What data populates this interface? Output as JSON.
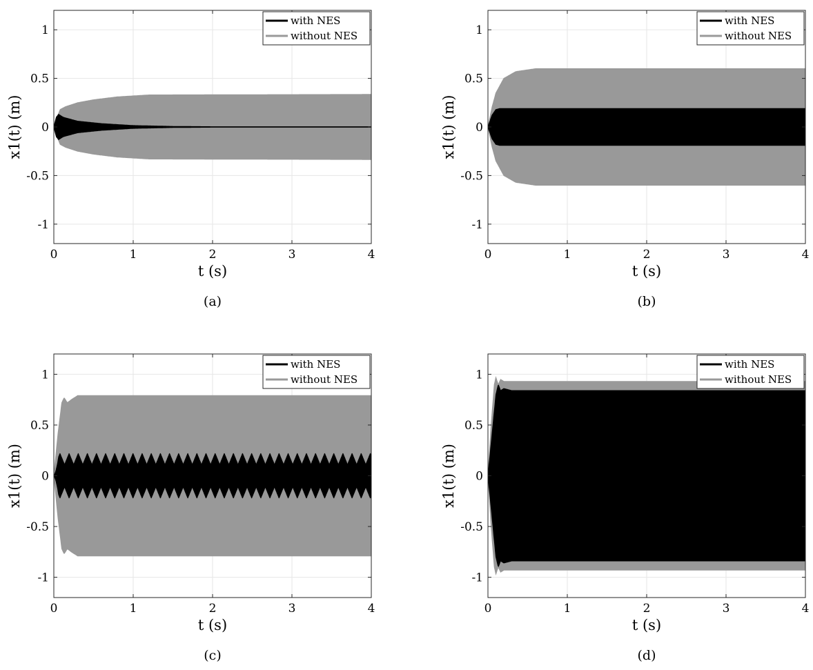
{
  "chart_data": [
    {
      "type": "line",
      "caption": "(a)",
      "xlabel": "t (s)",
      "ylabel": "x1(t) (m)",
      "xlim": [
        0,
        4
      ],
      "ylim": [
        -1.2,
        1.2
      ],
      "xticks": [
        0,
        1,
        2,
        3,
        4
      ],
      "yticks": [
        -1,
        -0.5,
        0,
        0.5,
        1
      ],
      "xtick_labels": [
        "0",
        "1",
        "2",
        "3",
        "4"
      ],
      "ytick_labels": [
        "-1",
        "-0.5",
        "0",
        "0.5",
        "1"
      ],
      "grid": true,
      "legend_position": "top-right",
      "series": [
        {
          "name": "without NES",
          "color": "#999999",
          "kind": "oscillation envelope",
          "envelope": [
            [
              0,
              0
            ],
            [
              0.04,
              0.1
            ],
            [
              0.08,
              0.18
            ],
            [
              0.15,
              0.21
            ],
            [
              0.3,
              0.25
            ],
            [
              0.5,
              0.28
            ],
            [
              0.8,
              0.31
            ],
            [
              1.2,
              0.33
            ],
            [
              4,
              0.335
            ]
          ]
        },
        {
          "name": "with NES",
          "color": "#000000",
          "kind": "oscillation envelope",
          "envelope": [
            [
              0,
              0
            ],
            [
              0.03,
              0.1
            ],
            [
              0.06,
              0.13
            ],
            [
              0.12,
              0.1
            ],
            [
              0.3,
              0.06
            ],
            [
              0.6,
              0.035
            ],
            [
              1,
              0.015
            ],
            [
              1.5,
              0.006
            ],
            [
              2,
              0.003
            ],
            [
              4,
              0.003
            ]
          ]
        }
      ]
    },
    {
      "type": "line",
      "caption": "(b)",
      "xlabel": "t (s)",
      "ylabel": "x1(t) (m)",
      "xlim": [
        0,
        4
      ],
      "ylim": [
        -1.2,
        1.2
      ],
      "xticks": [
        0,
        1,
        2,
        3,
        4
      ],
      "yticks": [
        -1,
        -0.5,
        0,
        0.5,
        1
      ],
      "xtick_labels": [
        "0",
        "1",
        "2",
        "3",
        "4"
      ],
      "ytick_labels": [
        "-1",
        "-0.5",
        "0",
        "0.5",
        "1"
      ],
      "grid": true,
      "legend_position": "top-right",
      "series": [
        {
          "name": "without NES",
          "color": "#999999",
          "kind": "oscillation envelope",
          "envelope": [
            [
              0,
              0
            ],
            [
              0.05,
              0.2
            ],
            [
              0.1,
              0.35
            ],
            [
              0.2,
              0.5
            ],
            [
              0.35,
              0.57
            ],
            [
              0.6,
              0.6
            ],
            [
              4,
              0.6
            ]
          ]
        },
        {
          "name": "with NES",
          "color": "#000000",
          "kind": "oscillation envelope",
          "envelope": [
            [
              0,
              0
            ],
            [
              0.05,
              0.12
            ],
            [
              0.1,
              0.18
            ],
            [
              0.15,
              0.19
            ],
            [
              4,
              0.19
            ]
          ]
        }
      ]
    },
    {
      "type": "line",
      "caption": "(c)",
      "xlabel": "t (s)",
      "ylabel": "x1(t) (m)",
      "xlim": [
        0,
        4
      ],
      "ylim": [
        -1.2,
        1.2
      ],
      "xticks": [
        0,
        1,
        2,
        3,
        4
      ],
      "yticks": [
        -1,
        -0.5,
        0,
        0.5,
        1
      ],
      "xtick_labels": [
        "0",
        "1",
        "2",
        "3",
        "4"
      ],
      "ytick_labels": [
        "-1",
        "-0.5",
        "0",
        "0.5",
        "1"
      ],
      "grid": true,
      "legend_position": "top-right",
      "series": [
        {
          "name": "without NES",
          "color": "#999999",
          "kind": "oscillation envelope",
          "envelope": [
            [
              0,
              0
            ],
            [
              0.05,
              0.4
            ],
            [
              0.1,
              0.72
            ],
            [
              0.13,
              0.77
            ],
            [
              0.17,
              0.72
            ],
            [
              0.22,
              0.75
            ],
            [
              0.3,
              0.79
            ],
            [
              4,
              0.79
            ]
          ]
        },
        {
          "name": "with NES",
          "color": "#000000",
          "kind": "beating oscillation",
          "amplitude_range": [
            0.11,
            0.22
          ],
          "beat_period": 0.115
        }
      ]
    },
    {
      "type": "line",
      "caption": "(d)",
      "xlabel": "t (s)",
      "ylabel": "x1(t) (m)",
      "xlim": [
        0,
        4
      ],
      "ylim": [
        -1.2,
        1.2
      ],
      "xticks": [
        0,
        1,
        2,
        3,
        4
      ],
      "yticks": [
        -1,
        -0.5,
        0,
        0.5,
        1
      ],
      "xtick_labels": [
        "0",
        "1",
        "2",
        "3",
        "4"
      ],
      "ytick_labels": [
        "-1",
        "-0.5",
        "0",
        "0.5",
        "1"
      ],
      "grid": true,
      "legend_position": "top-right",
      "series": [
        {
          "name": "without NES",
          "color": "#999999",
          "kind": "oscillation envelope",
          "envelope": [
            [
              0,
              0
            ],
            [
              0.04,
              0.5
            ],
            [
              0.08,
              0.9
            ],
            [
              0.1,
              0.97
            ],
            [
              0.13,
              0.9
            ],
            [
              0.16,
              0.95
            ],
            [
              0.2,
              0.93
            ],
            [
              4,
              0.93
            ]
          ]
        },
        {
          "name": "with NES",
          "color": "#000000",
          "kind": "oscillation envelope",
          "envelope": [
            [
              0,
              0
            ],
            [
              0.05,
              0.4
            ],
            [
              0.1,
              0.8
            ],
            [
              0.13,
              0.9
            ],
            [
              0.16,
              0.84
            ],
            [
              0.2,
              0.86
            ],
            [
              0.3,
              0.84
            ],
            [
              4,
              0.84
            ]
          ]
        }
      ]
    }
  ]
}
